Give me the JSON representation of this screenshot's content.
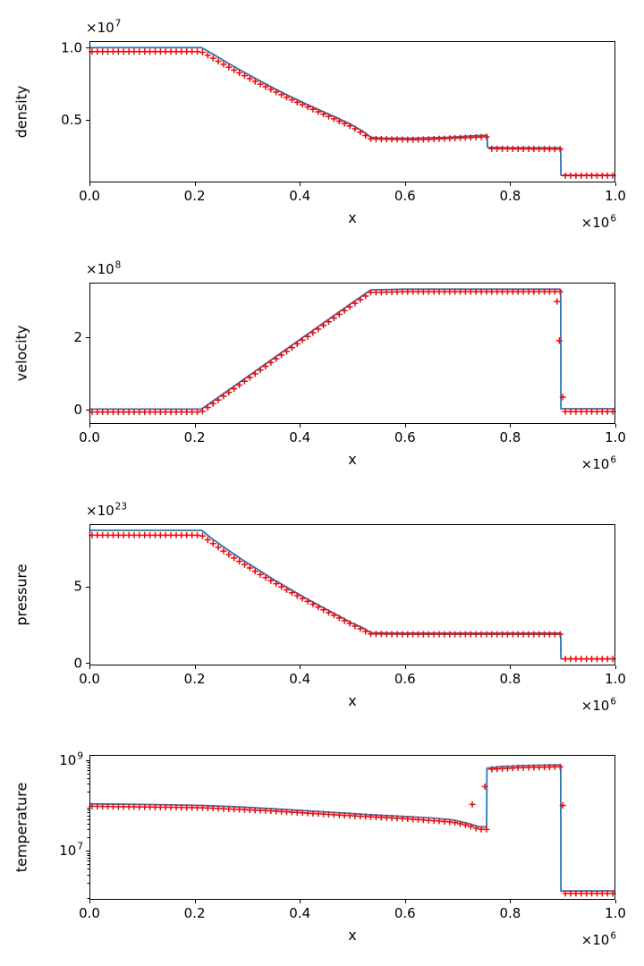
{
  "figure": {
    "background": "#ffffff",
    "line_color": "#1f77b4",
    "marker_color": "#ff0000",
    "axis_color": "#000000",
    "text_color": "#000000"
  },
  "chart_data": [
    {
      "type": "line",
      "ylabel": "density",
      "xlabel": "x",
      "yscale": "linear",
      "xlim": [
        0.0,
        1.0
      ],
      "ylim": [
        0.065,
        1.045
      ],
      "x_offset": {
        "text": "×10",
        "exp": "6"
      },
      "y_offset": {
        "text": "×10",
        "exp": "7"
      },
      "xticks": [
        {
          "v": 0.0,
          "label": "0.0"
        },
        {
          "v": 0.2,
          "label": "0.2"
        },
        {
          "v": 0.4,
          "label": "0.4"
        },
        {
          "v": 0.6,
          "label": "0.6"
        },
        {
          "v": 0.8,
          "label": "0.8"
        },
        {
          "v": 1.0,
          "label": "1.0"
        }
      ],
      "yticks": [
        {
          "v": 0.5,
          "label": "0.5"
        },
        {
          "v": 1.0,
          "label": "1.0"
        }
      ],
      "line": [
        [
          0,
          1.0
        ],
        [
          0.213,
          1.0
        ],
        [
          0.235,
          0.955
        ],
        [
          0.26,
          0.9
        ],
        [
          0.29,
          0.838
        ],
        [
          0.32,
          0.778
        ],
        [
          0.35,
          0.72
        ],
        [
          0.38,
          0.665
        ],
        [
          0.41,
          0.613
        ],
        [
          0.44,
          0.563
        ],
        [
          0.47,
          0.515
        ],
        [
          0.5,
          0.462
        ],
        [
          0.52,
          0.42
        ],
        [
          0.535,
          0.378
        ],
        [
          0.56,
          0.372
        ],
        [
          0.62,
          0.372
        ],
        [
          0.68,
          0.378
        ],
        [
          0.73,
          0.388
        ],
        [
          0.752,
          0.392
        ],
        [
          0.7562,
          0.392
        ],
        [
          0.7568,
          0.308
        ],
        [
          0.8,
          0.305
        ],
        [
          0.894,
          0.305
        ],
        [
          0.896,
          0.305
        ],
        [
          0.8965,
          0.115
        ],
        [
          1.0,
          0.115
        ]
      ],
      "markers": {
        "n": 100,
        "breakpoints": [
          [
            0,
            0.972
          ],
          [
            0.213,
            0.972
          ],
          [
            0.26,
            0.874
          ],
          [
            0.32,
            0.756
          ],
          [
            0.38,
            0.646
          ],
          [
            0.44,
            0.547
          ],
          [
            0.5,
            0.449
          ],
          [
            0.535,
            0.367
          ],
          [
            0.62,
            0.361
          ],
          [
            0.73,
            0.377
          ],
          [
            0.752,
            0.381
          ],
          [
            0.7562,
            0.381
          ],
          [
            0.7568,
            0.299
          ],
          [
            0.894,
            0.296
          ],
          [
            0.896,
            0.296
          ],
          [
            0.8965,
            0.112
          ],
          [
            1.0,
            0.112
          ]
        ],
        "extra_points": []
      }
    },
    {
      "type": "line",
      "ylabel": "velocity",
      "xlabel": "x",
      "yscale": "linear",
      "xlim": [
        0.0,
        1.0
      ],
      "ylim": [
        -0.4,
        3.5
      ],
      "x_offset": {
        "text": "×10",
        "exp": "6"
      },
      "y_offset": {
        "text": "×10",
        "exp": "8"
      },
      "xticks": [
        {
          "v": 0.0,
          "label": "0.0"
        },
        {
          "v": 0.2,
          "label": "0.2"
        },
        {
          "v": 0.4,
          "label": "0.4"
        },
        {
          "v": 0.6,
          "label": "0.6"
        },
        {
          "v": 0.8,
          "label": "0.8"
        },
        {
          "v": 1.0,
          "label": "1.0"
        }
      ],
      "yticks": [
        {
          "v": 0,
          "label": "0"
        },
        {
          "v": 2,
          "label": "2"
        }
      ],
      "line": [
        [
          0,
          0.01
        ],
        [
          0.213,
          0.01
        ],
        [
          0.3,
          0.9
        ],
        [
          0.4,
          1.93
        ],
        [
          0.5,
          2.95
        ],
        [
          0.535,
          3.3
        ],
        [
          0.6,
          3.32
        ],
        [
          0.8,
          3.32
        ],
        [
          0.894,
          3.32
        ],
        [
          0.896,
          3.3
        ],
        [
          0.8965,
          0.02
        ],
        [
          1.0,
          0.02
        ]
      ],
      "markers": {
        "n": 100,
        "breakpoints": [
          [
            0,
            -0.07
          ],
          [
            0.213,
            -0.07
          ],
          [
            0.3,
            0.83
          ],
          [
            0.4,
            1.86
          ],
          [
            0.5,
            2.88
          ],
          [
            0.535,
            3.23
          ],
          [
            0.6,
            3.25
          ],
          [
            0.894,
            3.25
          ],
          [
            0.896,
            3.25
          ],
          [
            0.8965,
            -0.06
          ],
          [
            1.0,
            -0.06
          ]
        ],
        "extra_points": [
          [
            0.889,
            2.98
          ],
          [
            0.8935,
            1.9
          ],
          [
            0.9,
            0.34
          ]
        ]
      }
    },
    {
      "type": "line",
      "ylabel": "pressure",
      "xlabel": "x",
      "yscale": "linear",
      "xlim": [
        0.0,
        1.0
      ],
      "ylim": [
        -0.15,
        9.05
      ],
      "x_offset": {
        "text": "×10",
        "exp": "6"
      },
      "y_offset": {
        "text": "×10",
        "exp": "23"
      },
      "xticks": [
        {
          "v": 0.0,
          "label": "0.0"
        },
        {
          "v": 0.2,
          "label": "0.2"
        },
        {
          "v": 0.4,
          "label": "0.4"
        },
        {
          "v": 0.6,
          "label": "0.6"
        },
        {
          "v": 0.8,
          "label": "0.8"
        },
        {
          "v": 1.0,
          "label": "1.0"
        }
      ],
      "yticks": [
        {
          "v": 0,
          "label": "0"
        },
        {
          "v": 5,
          "label": "5"
        }
      ],
      "line": [
        [
          0,
          8.65
        ],
        [
          0.213,
          8.65
        ],
        [
          0.235,
          8.05
        ],
        [
          0.26,
          7.45
        ],
        [
          0.29,
          6.75
        ],
        [
          0.32,
          6.1
        ],
        [
          0.35,
          5.45
        ],
        [
          0.38,
          4.85
        ],
        [
          0.41,
          4.25
        ],
        [
          0.44,
          3.7
        ],
        [
          0.47,
          3.15
        ],
        [
          0.5,
          2.6
        ],
        [
          0.52,
          2.3
        ],
        [
          0.535,
          1.98
        ],
        [
          0.6,
          1.95
        ],
        [
          0.894,
          1.95
        ],
        [
          0.896,
          1.95
        ],
        [
          0.8965,
          0.28
        ],
        [
          1.0,
          0.28
        ]
      ],
      "markers": {
        "n": 100,
        "breakpoints": [
          [
            0,
            8.33
          ],
          [
            0.213,
            8.33
          ],
          [
            0.26,
            7.17
          ],
          [
            0.32,
            5.87
          ],
          [
            0.38,
            4.67
          ],
          [
            0.44,
            3.56
          ],
          [
            0.5,
            2.5
          ],
          [
            0.535,
            1.9
          ],
          [
            0.6,
            1.88
          ],
          [
            0.894,
            1.88
          ],
          [
            0.896,
            1.88
          ],
          [
            0.8965,
            0.27
          ],
          [
            1.0,
            0.27
          ]
        ],
        "extra_points": []
      }
    },
    {
      "type": "line",
      "ylabel": "temperature",
      "xlabel": "x",
      "yscale": "log",
      "xlim": [
        0.0,
        1.0
      ],
      "ylim": [
        830000.0,
        1300000000.0
      ],
      "x_offset": {
        "text": "×10",
        "exp": "6"
      },
      "y_offset": null,
      "xticks": [
        {
          "v": 0.0,
          "label": "0.0"
        },
        {
          "v": 0.2,
          "label": "0.2"
        },
        {
          "v": 0.4,
          "label": "0.4"
        },
        {
          "v": 0.6,
          "label": "0.6"
        },
        {
          "v": 0.8,
          "label": "0.8"
        },
        {
          "v": 1.0,
          "label": "1.0"
        }
      ],
      "yticks": [
        {
          "v": 10000000.0,
          "label": {
            "text": "10",
            "exp": "7"
          }
        },
        {
          "v": 1000000000.0,
          "label": {
            "text": "10",
            "exp": "9"
          }
        }
      ],
      "line": [
        [
          0,
          108000000.0
        ],
        [
          0.1,
          105000000.0
        ],
        [
          0.213,
          100000000.0
        ],
        [
          0.28,
          93000000.0
        ],
        [
          0.35,
          84000000.0
        ],
        [
          0.42,
          75000000.0
        ],
        [
          0.5,
          66000000.0
        ],
        [
          0.535,
          62000000.0
        ],
        [
          0.6,
          57000000.0
        ],
        [
          0.65,
          53000000.0
        ],
        [
          0.69,
          48000000.0
        ],
        [
          0.72,
          40000000.0
        ],
        [
          0.74,
          34000000.0
        ],
        [
          0.7552,
          33500000.0
        ],
        [
          0.7558,
          660000000.0
        ],
        [
          0.78,
          710000000.0
        ],
        [
          0.82,
          750000000.0
        ],
        [
          0.86,
          770000000.0
        ],
        [
          0.894,
          780000000.0
        ],
        [
          0.896,
          780000000.0
        ],
        [
          0.8965,
          1300000.0
        ],
        [
          1.0,
          1300000.0
        ]
      ],
      "markers": {
        "n": 100,
        "breakpoints": [
          [
            0,
            96000000.0
          ],
          [
            0.213,
            89000000.0
          ],
          [
            0.35,
            75000000.0
          ],
          [
            0.5,
            59000000.0
          ],
          [
            0.6,
            51000000.0
          ],
          [
            0.69,
            43000000.0
          ],
          [
            0.72,
            36000000.0
          ],
          [
            0.74,
            30000000.0
          ],
          [
            0.7552,
            29500000.0
          ],
          [
            0.7558,
            620000000.0
          ],
          [
            0.82,
            680000000.0
          ],
          [
            0.894,
            710000000.0
          ],
          [
            0.896,
            710000000.0
          ],
          [
            0.8965,
            1150000.0
          ],
          [
            1.0,
            1150000.0
          ]
        ],
        "extra_points": [
          [
            0.728,
            105000000.0
          ],
          [
            0.752,
            260000000.0
          ],
          [
            0.9,
            100000000.0
          ]
        ]
      }
    }
  ]
}
